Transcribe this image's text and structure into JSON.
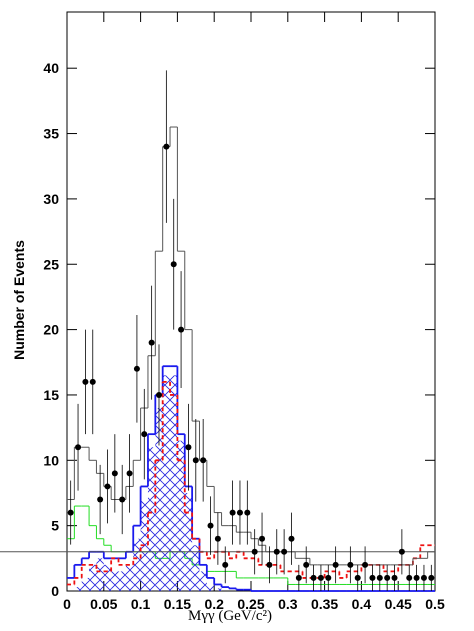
{
  "chart_data": {
    "type": "histogram",
    "x_label": "Mγγ  (GeV/c²)",
    "y_label": "Number of Events",
    "bins": [
      0,
      0.01,
      0.02,
      0.03,
      0.04,
      0.05,
      0.06,
      0.07,
      0.08,
      0.09,
      0.1,
      0.11,
      0.12,
      0.13,
      0.14,
      0.15,
      0.16,
      0.17,
      0.18,
      0.19,
      0.2,
      0.21,
      0.22,
      0.23,
      0.24,
      0.25,
      0.26,
      0.27,
      0.28,
      0.29,
      0.3,
      0.31,
      0.32,
      0.33,
      0.34,
      0.35,
      0.36,
      0.37,
      0.38,
      0.39,
      0.4,
      0.41,
      0.42,
      0.43,
      0.44,
      0.45,
      0.46,
      0.47,
      0.48,
      0.49,
      0.5
    ],
    "xlim": [
      0,
      0.5
    ],
    "ylim": [
      0,
      44.3
    ],
    "xticks": [
      0,
      0.05,
      0.1,
      0.15,
      0.2,
      0.25,
      0.3,
      0.35,
      0.4,
      0.45,
      0.5
    ],
    "yticks": [
      0,
      5,
      10,
      15,
      20,
      25,
      30,
      35,
      40
    ],
    "series": [
      {
        "color": "#22dd22",
        "style": "solid",
        "values": [
          4,
          6.5,
          6.5,
          5,
          4,
          3.5,
          3,
          3,
          3,
          3,
          3,
          3,
          2.5,
          2.5,
          3,
          3,
          2.5,
          2,
          2,
          1.5,
          1.5,
          1.5,
          1.5,
          1,
          1,
          1,
          1,
          1,
          1,
          1,
          0.5,
          0.5,
          0.5,
          0.5,
          0.5,
          0.5,
          0.5,
          0.5,
          0.5,
          0.5,
          0.5,
          0.5,
          0.5,
          0.5,
          0.5,
          0.5,
          0.5,
          0.5,
          0.5,
          0.5
        ]
      },
      {
        "color": "#2222dd",
        "style": "hatched",
        "values": [
          0,
          0.3,
          1,
          2,
          2.5,
          2,
          1.5,
          1.5,
          2,
          4,
          7,
          11,
          14,
          16.5,
          16.5,
          11.5,
          7.5,
          3.5,
          1.5,
          0.5,
          0.2,
          0,
          0,
          0,
          0,
          0,
          0,
          0,
          0,
          0,
          0,
          0,
          0,
          0,
          0,
          0,
          0,
          0,
          0,
          0,
          0,
          0,
          0,
          0,
          0,
          0,
          0,
          0,
          0,
          0
        ]
      },
      {
        "color": "#1a1aee",
        "style": "solid",
        "values": [
          1,
          2,
          2.5,
          3,
          3,
          2.5,
          2.5,
          2.5,
          3,
          5,
          8,
          12,
          15,
          17.2,
          17.2,
          12,
          8,
          4,
          2,
          1,
          0.5,
          0.3,
          0.2,
          0.1,
          0.1,
          0,
          0,
          0,
          0,
          0,
          0,
          0,
          0,
          0,
          0,
          0,
          0,
          0,
          0,
          0,
          0,
          0,
          0,
          0,
          0,
          0,
          0,
          0,
          0,
          0
        ]
      },
      {
        "color": "#ee1111",
        "style": "dashed",
        "values": [
          0.5,
          1,
          2,
          2,
          1.5,
          1.5,
          2.5,
          2,
          2,
          2.5,
          3.5,
          6,
          10,
          16,
          15,
          10,
          6,
          4,
          3,
          2.5,
          3,
          3,
          2.5,
          3,
          2.5,
          2.5,
          2,
          2,
          2,
          1.5,
          1.5,
          1.5,
          1,
          1,
          1,
          1.5,
          1.5,
          1,
          1.5,
          1.5,
          2,
          2,
          2,
          1.5,
          1.5,
          2,
          2,
          2.5,
          3.5,
          3.5
        ]
      },
      {
        "color": "#555555",
        "style": "solid",
        "values": [
          7,
          11,
          11,
          10,
          9,
          8,
          7,
          7,
          8,
          10,
          14,
          18,
          26,
          34,
          35.5,
          26,
          20,
          13,
          10,
          8,
          6,
          5,
          5,
          4.5,
          4.5,
          4,
          3.5,
          3,
          3,
          3,
          3,
          2.5,
          2.5,
          2,
          2,
          2,
          2,
          2,
          2,
          2,
          2,
          2,
          2,
          2,
          2,
          2,
          2,
          2.5,
          2.5,
          3,
          3
        ]
      }
    ],
    "points": {
      "color": "#000000",
      "values": [
        6,
        11,
        16,
        16,
        7,
        8,
        9,
        7,
        9,
        17,
        12,
        19,
        15,
        34,
        25,
        20,
        11,
        10,
        10,
        5,
        4,
        2,
        6,
        6,
        6,
        3,
        4,
        2,
        3,
        3,
        4,
        1,
        2,
        1,
        1,
        1,
        2,
        null,
        2,
        1,
        2,
        1,
        1,
        1,
        1,
        3,
        1,
        1,
        1,
        1
      ],
      "errors": [
        2.45,
        3.32,
        4,
        4,
        2.65,
        2.83,
        3,
        2.65,
        3,
        4.12,
        3.46,
        4.36,
        3.87,
        5.83,
        5,
        4.47,
        3.32,
        3.16,
        3.16,
        2.24,
        2,
        1.41,
        2.45,
        2.45,
        2.45,
        1.73,
        2,
        1.41,
        1.73,
        1.73,
        2,
        1,
        1.41,
        1,
        1,
        1,
        1.41,
        null,
        1.41,
        1,
        1.41,
        1,
        1,
        1,
        1,
        1.73,
        1,
        1,
        1,
        1
      ]
    }
  }
}
